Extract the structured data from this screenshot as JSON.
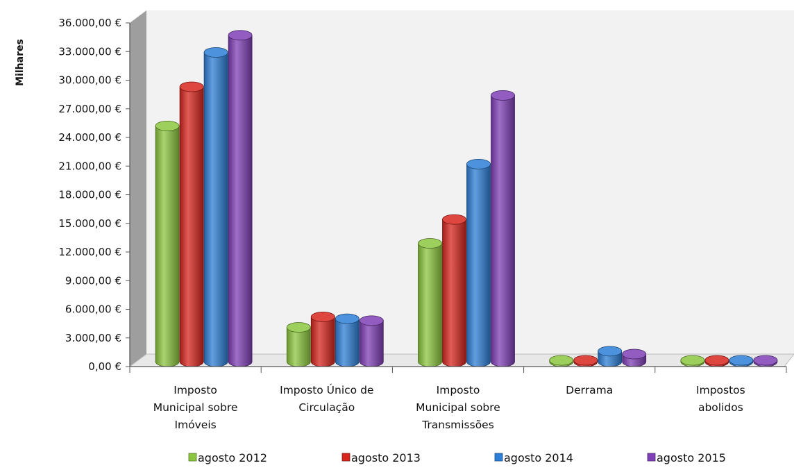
{
  "chart_data": {
    "type": "bar",
    "ylabel": "Milhares",
    "ylim": [
      0,
      36000
    ],
    "y_step": 3000,
    "y_tick_labels": [
      "0,00 €",
      "3.000,00 €",
      "6.000,00 €",
      "9.000,00 €",
      "12.000,00 €",
      "15.000,00 €",
      "18.000,00 €",
      "21.000,00 €",
      "24.000,00 €",
      "27.000,00 €",
      "30.000,00 €",
      "33.000,00 €",
      "36.000,00 €"
    ],
    "categories": [
      [
        "Imposto",
        "Municipal sobre",
        "Imóveis"
      ],
      [
        "Imposto Único de",
        "Circulação"
      ],
      [
        "Imposto",
        "Municipal sobre",
        "Transmissões"
      ],
      [
        "Derrama"
      ],
      [
        "Impostos",
        "abolidos"
      ]
    ],
    "series": [
      {
        "name": "agosto  2012",
        "color": "#8cc63f",
        "values": [
          24700,
          3600,
          12400,
          20,
          10
        ]
      },
      {
        "name": "agosto  2013",
        "color": "#d7261e",
        "values": [
          28800,
          4700,
          14900,
          20,
          10
        ]
      },
      {
        "name": "agosto  2014",
        "color": "#2e7fd6",
        "values": [
          32400,
          4500,
          20700,
          1100,
          10
        ]
      },
      {
        "name": "agosto  2015",
        "color": "#7f3fb6",
        "values": [
          34200,
          4300,
          27900,
          800,
          10
        ]
      }
    ],
    "grid": false,
    "legend": "bottom",
    "style": "3d-cylinder"
  }
}
